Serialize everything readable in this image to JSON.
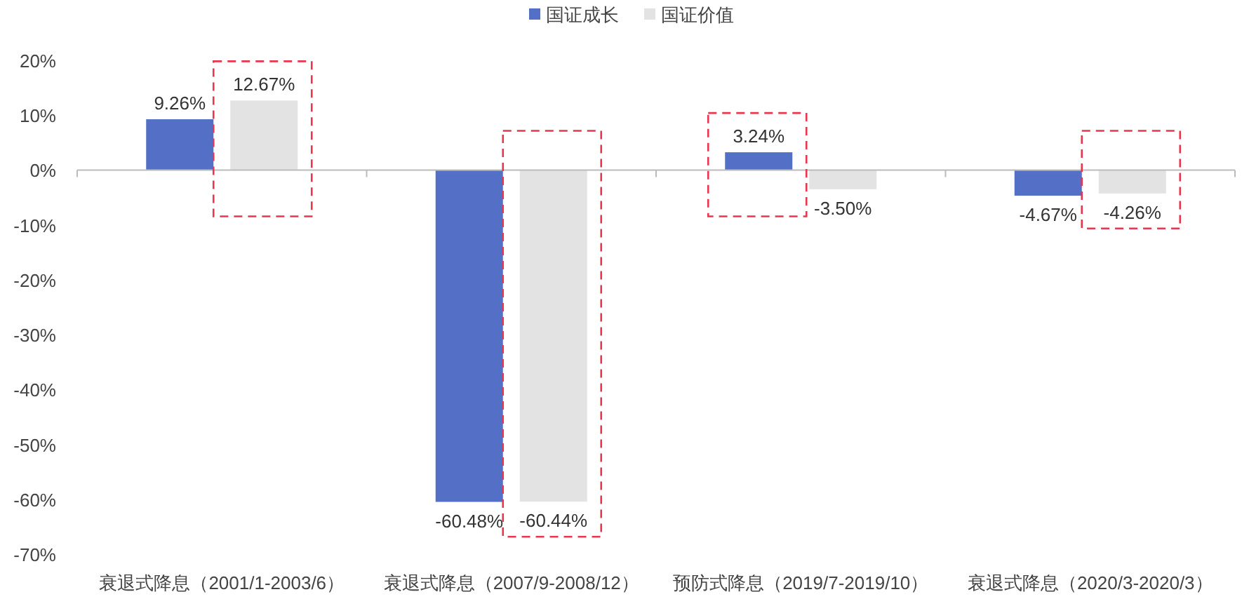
{
  "chart_data": {
    "type": "bar",
    "categories": [
      "衰退式降息（2001/1-2003/6）",
      "衰退式降息（2007/9-2008/12）",
      "预防式降息（2019/7-2019/10）",
      "衰退式降息（2020/3-2020/3）"
    ],
    "series": [
      {
        "name": "国证成长",
        "color": "#5470c6",
        "values": [
          9.26,
          -60.48,
          3.24,
          -4.67
        ],
        "value_labels": [
          "9.26%",
          "-60.48%",
          "3.24%",
          "-4.67%"
        ]
      },
      {
        "name": "国证价值",
        "color": "#e3e3e3",
        "values": [
          12.67,
          -60.44,
          -3.5,
          -4.26
        ],
        "value_labels": [
          "12.67%",
          "-60.44%",
          "-3.50%",
          "-4.26%"
        ]
      }
    ],
    "ylim": [
      -70,
      20
    ],
    "yticks": [
      {
        "value": 20,
        "label": "20%"
      },
      {
        "value": 10,
        "label": "10%"
      },
      {
        "value": 0,
        "label": "0%"
      },
      {
        "value": -10,
        "label": "-10%"
      },
      {
        "value": -20,
        "label": "-20%"
      },
      {
        "value": -30,
        "label": "-30%"
      },
      {
        "value": -40,
        "label": "-40%"
      },
      {
        "value": -50,
        "label": "-50%"
      },
      {
        "value": -60,
        "label": "-60%"
      },
      {
        "value": -70,
        "label": "-70%"
      }
    ],
    "legend": "top"
  }
}
